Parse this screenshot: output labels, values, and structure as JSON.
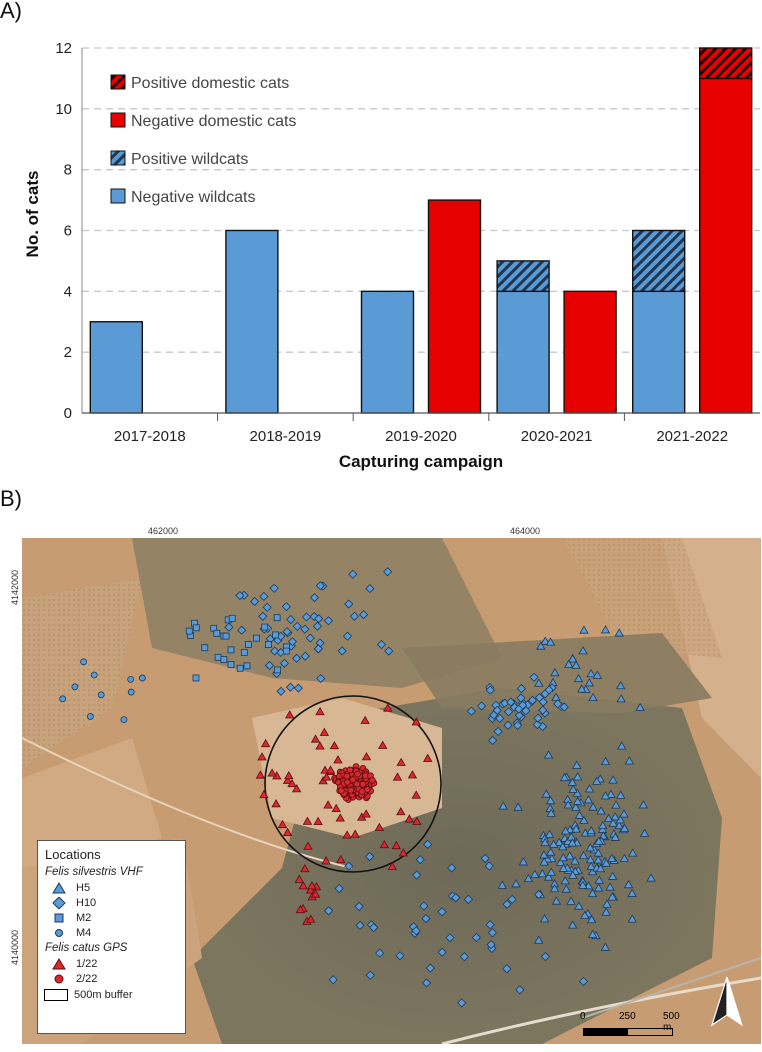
{
  "panel_a_label": "A)",
  "panel_b_label": "B)",
  "chart_data": {
    "type": "bar",
    "stacked": true,
    "xlabel": "Capturing campaign",
    "ylabel": "No. of cats",
    "ylim": [
      0,
      12
    ],
    "yticks": [
      "0",
      "2",
      "4",
      "6",
      "8",
      "10",
      "12"
    ],
    "grid": "horizontal dashed",
    "legend_position": "top-left",
    "categories": [
      "2017-2018",
      "2018-2019",
      "2019-2020",
      "2020-2021",
      "2021-2022"
    ],
    "groups": [
      "wildcats",
      "domestic cats"
    ],
    "series": [
      {
        "name": "Negative wildcats",
        "group": "wildcats",
        "color": "#5b9bd5",
        "pattern": "none",
        "values": [
          3,
          6,
          4,
          4,
          4
        ]
      },
      {
        "name": "Positive wildcats",
        "group": "wildcats",
        "color": "#5b9bd5",
        "pattern": "hatched",
        "values": [
          0,
          0,
          0,
          1,
          2
        ]
      },
      {
        "name": "Negative domestic cats",
        "group": "domestic cats",
        "color": "#e80000",
        "pattern": "none",
        "values": [
          0,
          0,
          7,
          4,
          11
        ]
      },
      {
        "name": "Positive domestic cats",
        "group": "domestic cats",
        "color": "#e80000",
        "pattern": "hatched",
        "values": [
          0,
          0,
          0,
          0,
          1
        ]
      }
    ],
    "legend_order": [
      "Positive domestic cats",
      "Negative domestic cats",
      "Positive wildcats",
      "Negative wildcats"
    ]
  },
  "map": {
    "x_coords": [
      "462000",
      "464000"
    ],
    "y_coords": [
      "4142000",
      "4140000"
    ],
    "legend": {
      "title": "Locations",
      "groups": [
        {
          "name": "Felis silvestris VHF",
          "items": [
            {
              "label": "H5",
              "shape": "triangle",
              "color": "#5b9bd5"
            },
            {
              "label": "H10",
              "shape": "diamond",
              "color": "#5b9bd5"
            },
            {
              "label": "M2",
              "shape": "square",
              "color": "#5b9bd5"
            },
            {
              "label": "M4",
              "shape": "circle",
              "color": "#5b9bd5"
            }
          ]
        },
        {
          "name": "Felis catus GPS",
          "items": [
            {
              "label": "1/22",
              "shape": "triangle",
              "color": "#d9282f"
            },
            {
              "label": "2/22",
              "shape": "circle",
              "color": "#d9282f"
            }
          ]
        }
      ],
      "buffer_label": "500m buffer"
    },
    "scale_labels": [
      "0",
      "250",
      "500 m"
    ],
    "north_icon": "north-arrow-icon"
  }
}
